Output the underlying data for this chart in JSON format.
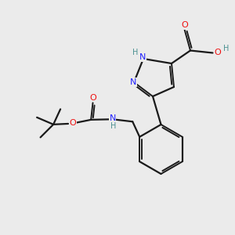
{
  "background_color": "#ebebeb",
  "bond_color": "#1a1a1a",
  "N_color": "#2020ff",
  "O_color": "#ee1010",
  "H_color": "#4a9090",
  "figsize": [
    3.0,
    3.0
  ],
  "dpi": 100,
  "xlim": [
    0,
    10
  ],
  "ylim": [
    0,
    10
  ]
}
